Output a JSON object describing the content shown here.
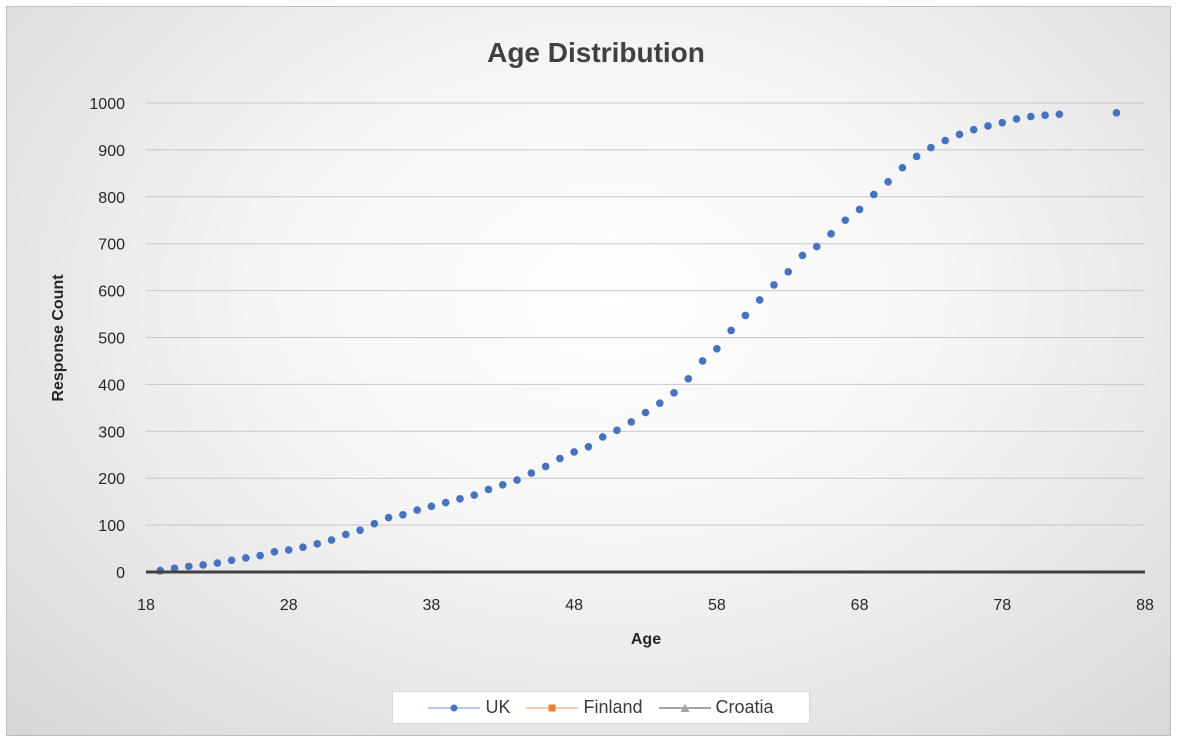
{
  "chart_data": {
    "type": "scatter",
    "title": "Age Distribution",
    "xlabel": "Age",
    "ylabel": "Response Count",
    "xlim": [
      18,
      88
    ],
    "ylim": [
      0,
      1000
    ],
    "xticks": [
      "18",
      "28",
      "38",
      "48",
      "58",
      "68",
      "78",
      "88"
    ],
    "yticks": [
      "0",
      "100",
      "200",
      "300",
      "400",
      "500",
      "600",
      "700",
      "800",
      "900",
      "1000"
    ],
    "grid": "horizontal",
    "legend_position": "bottom",
    "series": [
      {
        "name": "UK",
        "color": "#4472c4",
        "marker": "circle",
        "points": [
          [
            19,
            3
          ],
          [
            20,
            8
          ],
          [
            21,
            12
          ],
          [
            22,
            15
          ],
          [
            23,
            19
          ],
          [
            24,
            25
          ],
          [
            25,
            30
          ],
          [
            26,
            35
          ],
          [
            27,
            43
          ],
          [
            28,
            47
          ],
          [
            29,
            53
          ],
          [
            30,
            60
          ],
          [
            31,
            68
          ],
          [
            32,
            80
          ],
          [
            33,
            89
          ],
          [
            34,
            103
          ],
          [
            35,
            116
          ],
          [
            36,
            122
          ],
          [
            37,
            132
          ],
          [
            38,
            140
          ],
          [
            39,
            148
          ],
          [
            40,
            156
          ],
          [
            41,
            164
          ],
          [
            42,
            176
          ],
          [
            43,
            186
          ],
          [
            44,
            196
          ],
          [
            45,
            211
          ],
          [
            46,
            225
          ],
          [
            47,
            242
          ],
          [
            48,
            256
          ],
          [
            49,
            267
          ],
          [
            50,
            288
          ],
          [
            51,
            302
          ],
          [
            52,
            320
          ],
          [
            53,
            340
          ],
          [
            54,
            360
          ],
          [
            55,
            382
          ],
          [
            56,
            412
          ],
          [
            57,
            450
          ],
          [
            58,
            476
          ],
          [
            59,
            515
          ],
          [
            60,
            547
          ],
          [
            61,
            580
          ],
          [
            62,
            612
          ],
          [
            63,
            640
          ],
          [
            64,
            675
          ],
          [
            65,
            694
          ],
          [
            66,
            721
          ],
          [
            67,
            750
          ],
          [
            68,
            773
          ],
          [
            69,
            805
          ],
          [
            70,
            832
          ],
          [
            71,
            862
          ],
          [
            72,
            886
          ],
          [
            73,
            905
          ],
          [
            74,
            920
          ],
          [
            75,
            933
          ],
          [
            76,
            943
          ],
          [
            77,
            951
          ],
          [
            78,
            958
          ],
          [
            79,
            966
          ],
          [
            80,
            971
          ],
          [
            81,
            974
          ],
          [
            82,
            976
          ],
          [
            86,
            979
          ]
        ]
      },
      {
        "name": "Finland",
        "color": "#ed7d31",
        "marker": "square",
        "points": [
          [
            19,
            1
          ]
        ]
      },
      {
        "name": "Croatia",
        "color": "#a5a5a5",
        "marker": "triangle",
        "points": [
          [
            19,
            5
          ]
        ]
      }
    ]
  }
}
